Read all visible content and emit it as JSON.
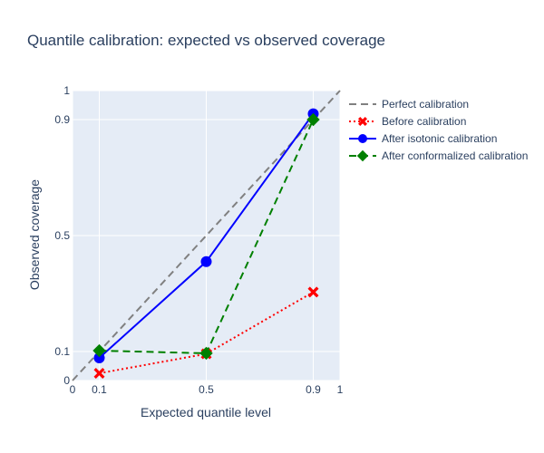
{
  "chart_data": {
    "type": "line",
    "title": "Quantile calibration: expected vs observed coverage",
    "xlabel": "Expected quantile level",
    "ylabel": "Observed coverage",
    "xlim": [
      0,
      1
    ],
    "ylim": [
      0,
      1
    ],
    "grid": true,
    "legend_position": "right",
    "xticks": [
      0,
      0.1,
      0.5,
      0.9,
      1
    ],
    "xtick_labels": [
      "0",
      "0.1",
      "0.5",
      "0.9",
      "1"
    ],
    "yticks": [
      0,
      0.1,
      0.5,
      0.9,
      1
    ],
    "ytick_labels": [
      "0",
      "0.1",
      "0.5",
      "0.9",
      "1"
    ],
    "series": [
      {
        "name": "Perfect calibration",
        "x": [
          0,
          1
        ],
        "y": [
          0,
          1
        ],
        "color": "#808080",
        "line_style": "dash",
        "marker": "none"
      },
      {
        "name": "Before calibration",
        "x": [
          0.1,
          0.5,
          0.9
        ],
        "y": [
          0.025,
          0.092,
          0.305
        ],
        "color": "#ff0000",
        "line_style": "dot",
        "marker": "x"
      },
      {
        "name": "After isotonic calibration",
        "x": [
          0.1,
          0.5,
          0.9
        ],
        "y": [
          0.078,
          0.41,
          0.92
        ],
        "color": "#0000ff",
        "line_style": "solid",
        "marker": "circle"
      },
      {
        "name": "After conformalized calibration",
        "x": [
          0.1,
          0.5,
          0.9
        ],
        "y": [
          0.103,
          0.094,
          0.9
        ],
        "color": "#008000",
        "line_style": "dash",
        "marker": "diamond"
      }
    ]
  }
}
